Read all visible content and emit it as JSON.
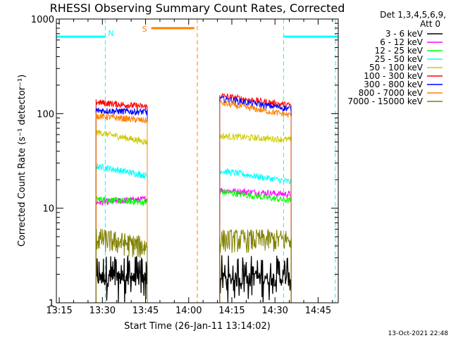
{
  "chart_data": {
    "type": "line",
    "title": "RHESSI Observing Summary Count Rates, Corrected",
    "xlabel": "Start Time (26-Jan-11 13:14:02)",
    "ylabel": "Corrected Count Rate (s⁻¹ detector⁻¹)",
    "x_range_minutes": [
      "13:14",
      "14:52"
    ],
    "ylim": [
      1,
      1000
    ],
    "y_scale": "log",
    "x_ticks": [
      "13:15",
      "13:30",
      "13:45",
      "14:00",
      "14:15",
      "14:30",
      "14:45"
    ],
    "y_ticks": [
      {
        "value": 1,
        "label": "1"
      },
      {
        "value": 10,
        "label": "10"
      },
      {
        "value": 100,
        "label": "100"
      },
      {
        "value": 1000,
        "label": "1000"
      }
    ],
    "legend_header": [
      "Det 1,3,4,5,6,9,",
      "Att 0"
    ],
    "legend_placement": "top-right outside",
    "timestamp": "13-Oct-2021 22:48",
    "annotations": [
      {
        "label": "N",
        "time": "13:31",
        "color": "#00ffff"
      },
      {
        "label": "S",
        "time": "13:46",
        "color": "#ff8000"
      }
    ],
    "flags": [
      {
        "name": "night",
        "color": "#00ffff",
        "segments": [
          [
            "13:14",
            "13:31"
          ],
          [
            "14:33",
            "14:52"
          ]
        ],
        "level": 650
      },
      {
        "name": "saa",
        "color": "#ff8000",
        "segments": [
          [
            "13:47",
            "14:02"
          ]
        ],
        "level": 800
      }
    ],
    "vlines": [
      {
        "time": "13:31",
        "color": "#00ffff"
      },
      {
        "time": "14:33",
        "color": "#00ffff"
      },
      {
        "time": "14:51",
        "color": "#00ffff"
      },
      {
        "time": "14:03",
        "color": "#ff8000"
      }
    ],
    "intervals": [
      [
        "13:27",
        "13:46"
      ],
      [
        "14:10",
        "14:36"
      ]
    ],
    "series": [
      {
        "name": "3 - 6 keV",
        "color": "#000000",
        "start": [
          2.0,
          1.8
        ],
        "end": [
          2.0,
          1.8
        ]
      },
      {
        "name": "6 - 12 keV",
        "color": "#ff00ff",
        "start": [
          11.5,
          15.5
        ],
        "end": [
          12.5,
          14.0
        ]
      },
      {
        "name": "12 - 25 keV",
        "color": "#00ff00",
        "start": [
          12.5,
          15.0
        ],
        "end": [
          11.5,
          12.0
        ]
      },
      {
        "name": "25 - 50 keV",
        "color": "#00ffff",
        "start": [
          28,
          25
        ],
        "end": [
          22,
          19
        ]
      },
      {
        "name": "50 - 100 keV",
        "color": "#cccc00",
        "start": [
          64,
          58
        ],
        "end": [
          50,
          53
        ]
      },
      {
        "name": "100 - 300 keV",
        "color": "#ff0000",
        "start": [
          132,
          155
        ],
        "end": [
          118,
          122
        ]
      },
      {
        "name": "300 - 800 keV",
        "color": "#0000ff",
        "start": [
          108,
          145
        ],
        "end": [
          104,
          112
        ]
      },
      {
        "name": "800 - 7000 keV",
        "color": "#ff8000",
        "start": [
          95,
          130
        ],
        "end": [
          84,
          96
        ]
      },
      {
        "name": "7000 - 15000 keV",
        "color": "#808000",
        "start": [
          5.0,
          4.8
        ],
        "end": [
          4.0,
          4.8
        ]
      }
    ]
  }
}
